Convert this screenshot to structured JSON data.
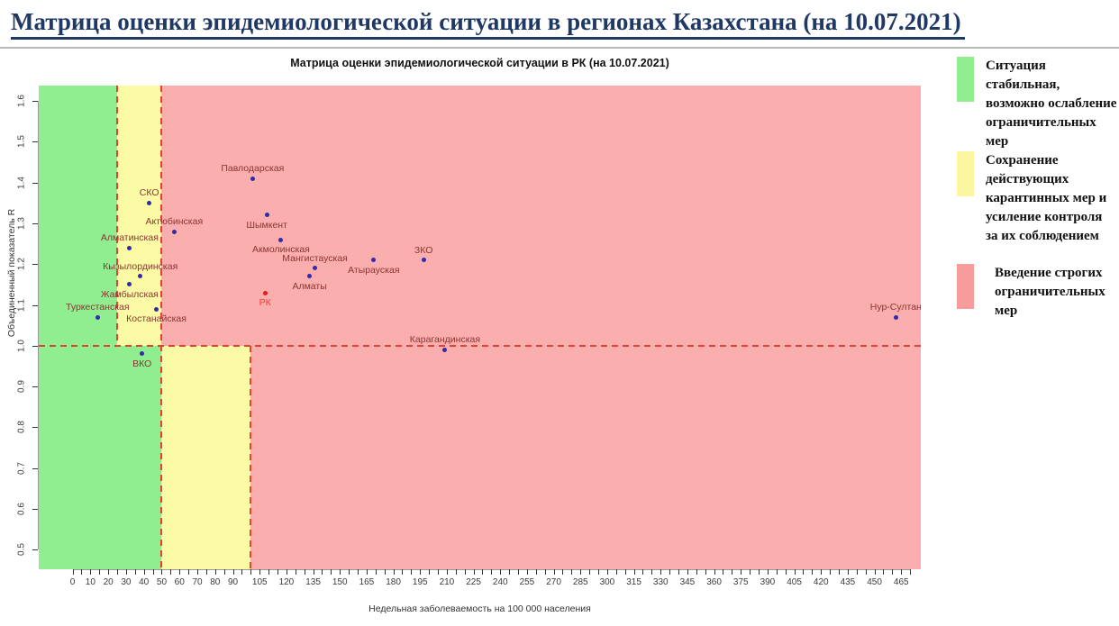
{
  "page": {
    "title": "Матрица оценки эпидемиологической ситуации в регионах Казахстана (на 10.07.2021)",
    "title_color": "#1f3864"
  },
  "chart_data": {
    "type": "scatter",
    "title": "Матрица оценки эпидемиологической ситуации в РК (на 10.07.2021)",
    "xlabel": "Недельная заболеваемость на 100 000 населения",
    "ylabel": "Объединенный показатель R",
    "xlim": [
      -19,
      476
    ],
    "ylim": [
      0.452,
      1.638
    ],
    "x_tick_step": 5,
    "x_tick_range": [
      0,
      470
    ],
    "x_tick_labels": [
      0,
      10,
      20,
      30,
      40,
      50,
      60,
      70,
      80,
      90,
      105,
      120,
      135,
      150,
      165,
      180,
      195,
      210,
      225,
      240,
      255,
      270,
      285,
      300,
      315,
      330,
      345,
      360,
      375,
      390,
      405,
      420,
      435,
      450,
      465
    ],
    "yticks": [
      0.5,
      0.6,
      0.7,
      0.8,
      0.9,
      1.0,
      1.1,
      1.2,
      1.3,
      1.4,
      1.5,
      1.6
    ],
    "grid": false,
    "colors": {
      "green_zone": "#90EE90",
      "yellow_zone": "#FBFBA6",
      "red_zone": "#FBAEAE",
      "dash": "#E8402C",
      "point": "#322AA6",
      "point_label": "#8B3434",
      "rk_point": "#E41A1C",
      "rk_label": "#F03B30",
      "axis": "#999999",
      "tick": "#333333"
    },
    "regions": [
      {
        "name": "green-zone-upper",
        "color": "#90EE90",
        "x": [
          -19,
          25
        ],
        "y": [
          1.0,
          1.638
        ]
      },
      {
        "name": "yellow-zone-upper",
        "color": "#FBFBA6",
        "x": [
          25,
          50
        ],
        "y": [
          1.0,
          1.638
        ]
      },
      {
        "name": "red-zone-upper",
        "color": "#FBAEAE",
        "x": [
          50,
          476
        ],
        "y": [
          1.0,
          1.638
        ]
      },
      {
        "name": "green-zone-lower",
        "color": "#90EE90",
        "x": [
          -19,
          50
        ],
        "y": [
          0.452,
          1.0
        ]
      },
      {
        "name": "yellow-zone-lower",
        "color": "#FBFBA6",
        "x": [
          50,
          100
        ],
        "y": [
          0.452,
          1.0
        ]
      },
      {
        "name": "red-zone-lower",
        "color": "#FBAEAE",
        "x": [
          100,
          476
        ],
        "y": [
          0.452,
          1.0
        ]
      }
    ],
    "dashed_lines": [
      {
        "name": "threshold-x25-upper",
        "orient": "v",
        "at": 25,
        "from": 1.0,
        "to": 1.638
      },
      {
        "name": "threshold-x50-full",
        "orient": "v",
        "at": 50,
        "from": 0.452,
        "to": 1.638
      },
      {
        "name": "threshold-x100-lower",
        "orient": "v",
        "at": 100,
        "from": 0.452,
        "to": 1.0
      },
      {
        "name": "threshold-r1",
        "orient": "h",
        "at": 1.0,
        "from": -19,
        "to": 476
      }
    ],
    "points": [
      {
        "name": "Туркестанская",
        "x": 14,
        "r": 1.07,
        "label_pos": "above"
      },
      {
        "name": "Алматинская",
        "x": 32,
        "r": 1.24,
        "label_pos": "above"
      },
      {
        "name": "Жамбылская",
        "x": 32,
        "r": 1.15,
        "label_pos": "below"
      },
      {
        "name": "Кызылординская",
        "x": 38,
        "r": 1.17,
        "label_pos": "above"
      },
      {
        "name": "ВКО",
        "x": 39,
        "r": 0.98,
        "label_pos": "below"
      },
      {
        "name": "СКО",
        "x": 43,
        "r": 1.35,
        "label_pos": "above"
      },
      {
        "name": "Костанайская",
        "x": 47,
        "r": 1.09,
        "label_pos": "below"
      },
      {
        "name": "Актюбинская",
        "x": 57,
        "r": 1.28,
        "label_pos": "above"
      },
      {
        "name": "Павлодарская",
        "x": 101,
        "r": 1.41,
        "label_pos": "above"
      },
      {
        "name": "РК",
        "x": 108,
        "r": 1.13,
        "label_pos": "below",
        "color": "#E41A1C",
        "label_color": "#F03B30"
      },
      {
        "name": "Шымкент",
        "x": 109,
        "r": 1.32,
        "label_pos": "below"
      },
      {
        "name": "Акмолинская",
        "x": 117,
        "r": 1.26,
        "label_pos": "below"
      },
      {
        "name": "Алматы",
        "x": 133,
        "r": 1.17,
        "label_pos": "below"
      },
      {
        "name": "Мангистауская",
        "x": 136,
        "r": 1.19,
        "label_pos": "above"
      },
      {
        "name": "Атырауская",
        "x": 169,
        "r": 1.21,
        "label_pos": "below"
      },
      {
        "name": "ЗКО",
        "x": 197,
        "r": 1.21,
        "label_pos": "above"
      },
      {
        "name": "Карагандинская",
        "x": 209,
        "r": 0.99,
        "label_pos": "above"
      },
      {
        "name": "Нур-Султан",
        "x": 462,
        "r": 1.07,
        "label_pos": "above"
      }
    ]
  },
  "legend": {
    "items": [
      {
        "swatch_color": "#90EE90",
        "indent": 0,
        "text": "Ситуация\nстабильная,\nвозможно ослабление\nограничительных\nмер"
      },
      {
        "swatch_color": "#FAF7A0",
        "indent": 0,
        "text": "Сохранение\nдействующих\nкарантинных мер и\nусиление контроля\nза их соблюдением"
      },
      {
        "swatch_color": "#F89B9B",
        "indent": 10,
        "text": "Введение строгих\nограничительных\nмер"
      }
    ]
  }
}
